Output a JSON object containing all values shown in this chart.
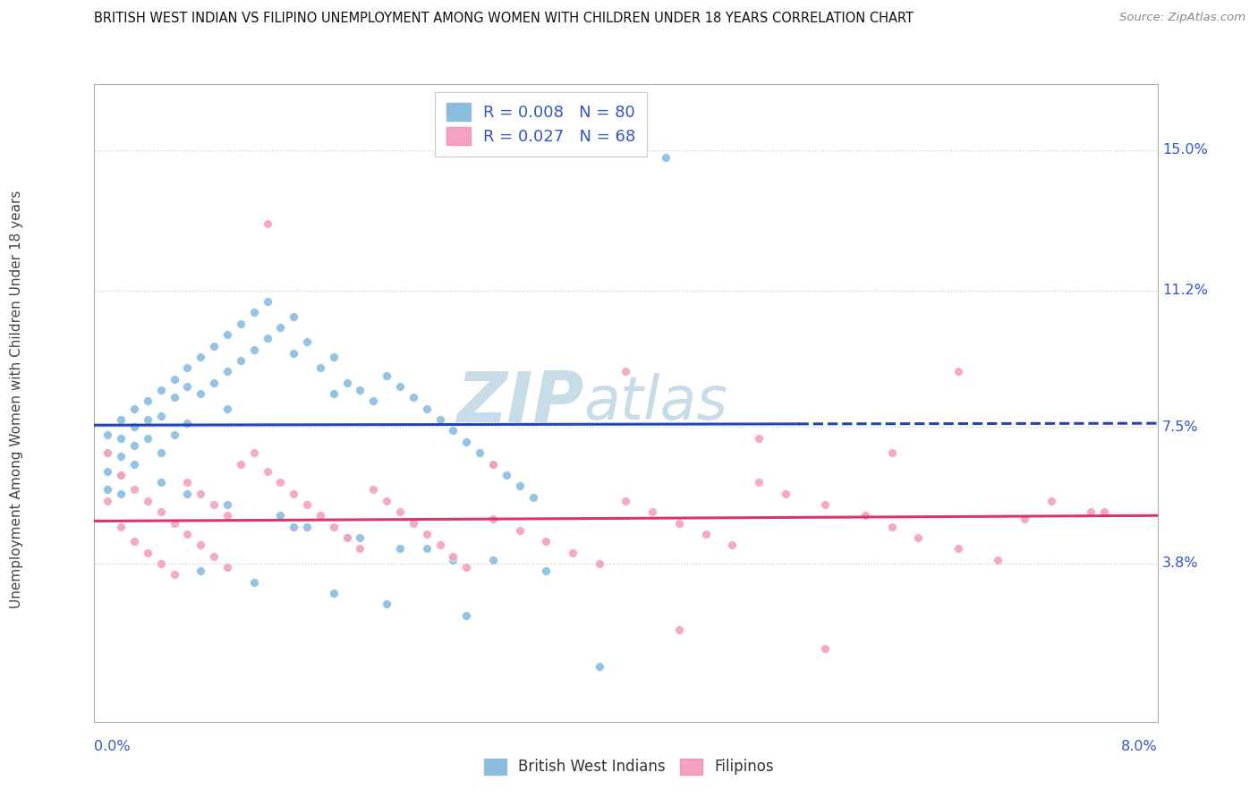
{
  "title": "BRITISH WEST INDIAN VS FILIPINO UNEMPLOYMENT AMONG WOMEN WITH CHILDREN UNDER 18 YEARS CORRELATION CHART",
  "source": "Source: ZipAtlas.com",
  "ylabel": "Unemployment Among Women with Children Under 18 years",
  "y_ticks": [
    0.038,
    0.075,
    0.112,
    0.15
  ],
  "y_tick_labels": [
    "3.8%",
    "7.5%",
    "11.2%",
    "15.0%"
  ],
  "x_range": [
    0.0,
    0.08
  ],
  "y_range": [
    -0.005,
    0.168
  ],
  "blue_R": "0.008",
  "blue_N": "80",
  "pink_R": "0.027",
  "pink_N": "68",
  "blue_scatter_color": "#88bde0",
  "pink_scatter_color": "#f4a0c0",
  "blue_line_color": "#2244bb",
  "pink_line_color": "#dd3366",
  "axis_label_color": "#3355cc",
  "grid_color": "#cccccc",
  "title_color": "#111111",
  "source_color": "#888888",
  "watermark_color": "#c8dce8",
  "blue_line_solid_end": 0.053,
  "blue_line_y_start": 0.0755,
  "blue_line_y_end": 0.076,
  "pink_line_y_start": 0.0495,
  "pink_line_y_end": 0.051,
  "blue_x": [
    0.001,
    0.001,
    0.001,
    0.001,
    0.002,
    0.002,
    0.002,
    0.002,
    0.002,
    0.003,
    0.003,
    0.003,
    0.003,
    0.004,
    0.004,
    0.004,
    0.005,
    0.005,
    0.005,
    0.006,
    0.006,
    0.006,
    0.007,
    0.007,
    0.007,
    0.008,
    0.008,
    0.009,
    0.009,
    0.01,
    0.01,
    0.01,
    0.011,
    0.011,
    0.012,
    0.012,
    0.013,
    0.013,
    0.014,
    0.015,
    0.015,
    0.016,
    0.017,
    0.018,
    0.018,
    0.019,
    0.02,
    0.021,
    0.022,
    0.023,
    0.024,
    0.025,
    0.026,
    0.027,
    0.028,
    0.029,
    0.03,
    0.031,
    0.032,
    0.033,
    0.015,
    0.02,
    0.025,
    0.03,
    0.008,
    0.012,
    0.018,
    0.022,
    0.028,
    0.005,
    0.007,
    0.01,
    0.014,
    0.016,
    0.019,
    0.023,
    0.027,
    0.034,
    0.038,
    0.043
  ],
  "blue_y": [
    0.073,
    0.068,
    0.063,
    0.058,
    0.077,
    0.072,
    0.067,
    0.062,
    0.057,
    0.08,
    0.075,
    0.07,
    0.065,
    0.082,
    0.077,
    0.072,
    0.085,
    0.078,
    0.068,
    0.088,
    0.083,
    0.073,
    0.091,
    0.086,
    0.076,
    0.094,
    0.084,
    0.097,
    0.087,
    0.1,
    0.09,
    0.08,
    0.103,
    0.093,
    0.106,
    0.096,
    0.109,
    0.099,
    0.102,
    0.105,
    0.095,
    0.098,
    0.091,
    0.094,
    0.084,
    0.087,
    0.085,
    0.082,
    0.089,
    0.086,
    0.083,
    0.08,
    0.077,
    0.074,
    0.071,
    0.068,
    0.065,
    0.062,
    0.059,
    0.056,
    0.048,
    0.045,
    0.042,
    0.039,
    0.036,
    0.033,
    0.03,
    0.027,
    0.024,
    0.06,
    0.057,
    0.054,
    0.051,
    0.048,
    0.045,
    0.042,
    0.039,
    0.036,
    0.01,
    0.148
  ],
  "pink_x": [
    0.001,
    0.001,
    0.002,
    0.002,
    0.003,
    0.003,
    0.004,
    0.004,
    0.005,
    0.005,
    0.006,
    0.006,
    0.007,
    0.007,
    0.008,
    0.008,
    0.009,
    0.009,
    0.01,
    0.01,
    0.011,
    0.012,
    0.013,
    0.014,
    0.015,
    0.016,
    0.017,
    0.018,
    0.019,
    0.02,
    0.021,
    0.022,
    0.023,
    0.024,
    0.025,
    0.026,
    0.027,
    0.028,
    0.03,
    0.032,
    0.034,
    0.036,
    0.038,
    0.04,
    0.042,
    0.044,
    0.046,
    0.048,
    0.05,
    0.052,
    0.055,
    0.058,
    0.06,
    0.062,
    0.065,
    0.068,
    0.07,
    0.013,
    0.03,
    0.04,
    0.05,
    0.06,
    0.065,
    0.044,
    0.055,
    0.072,
    0.075,
    0.076
  ],
  "pink_y": [
    0.068,
    0.055,
    0.062,
    0.048,
    0.058,
    0.044,
    0.055,
    0.041,
    0.052,
    0.038,
    0.049,
    0.035,
    0.06,
    0.046,
    0.057,
    0.043,
    0.054,
    0.04,
    0.051,
    0.037,
    0.065,
    0.068,
    0.063,
    0.06,
    0.057,
    0.054,
    0.051,
    0.048,
    0.045,
    0.042,
    0.058,
    0.055,
    0.052,
    0.049,
    0.046,
    0.043,
    0.04,
    0.037,
    0.05,
    0.047,
    0.044,
    0.041,
    0.038,
    0.055,
    0.052,
    0.049,
    0.046,
    0.043,
    0.06,
    0.057,
    0.054,
    0.051,
    0.048,
    0.045,
    0.042,
    0.039,
    0.05,
    0.13,
    0.065,
    0.09,
    0.072,
    0.068,
    0.09,
    0.02,
    0.015,
    0.055,
    0.052,
    0.052
  ]
}
